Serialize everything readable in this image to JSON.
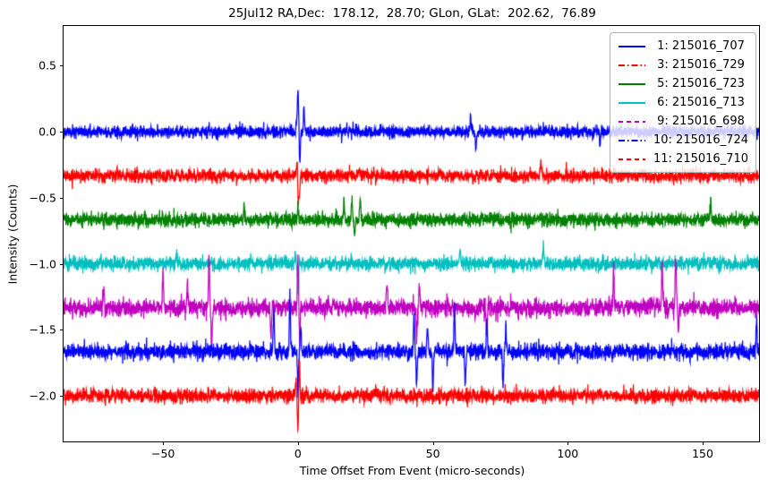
{
  "chart_data": {
    "type": "line",
    "title": "25Jul12 RA,Dec:  178.12,  28.70; GLon, GLat:  202.62,  76.89",
    "xlabel": "Time Offset From Event (micro-seconds)",
    "ylabel": "Intensity (Counts)",
    "xlim": [
      -86.9,
      170.9
    ],
    "ylim": [
      -2.346,
      0.801
    ],
    "xticks": [
      -50,
      0,
      50,
      100,
      150
    ],
    "xtick_labels": [
      "−50",
      "0",
      "50",
      "100",
      "150"
    ],
    "yticks": [
      0.5,
      0.0,
      -0.5,
      -1.0,
      -1.5,
      -2.0
    ],
    "ytick_labels": [
      "0.5",
      "0.0",
      "−0.5",
      "−1.0",
      "−1.5",
      "−2.0"
    ],
    "grid": false,
    "legend_position": "upper right",
    "background": "#ffffff",
    "axes_color": "#000000",
    "series": [
      {
        "name": " 1: 215016_707",
        "color": "#0000ff",
        "linestyle": "solid",
        "offset": 0.0,
        "noise_sigma": 0.022,
        "spikes": [
          {
            "t": -0.5,
            "amp": 0.1
          },
          {
            "t": 0.0,
            "amp": 0.32
          },
          {
            "t": 0.7,
            "amp": -0.22
          },
          {
            "t": 2.2,
            "amp": 0.19
          },
          {
            "t": 64.0,
            "amp": 0.13
          },
          {
            "t": 66.0,
            "amp": -0.15
          },
          {
            "t": 112.0,
            "amp": -0.1
          }
        ]
      },
      {
        "name": " 3: 215016_729",
        "color": "#ff0000",
        "linestyle": "dashdot",
        "offset": -0.333,
        "noise_sigma": 0.024,
        "spikes": [
          {
            "t": -0.3,
            "amp": 0.16
          },
          {
            "t": 0.0,
            "amp": -0.22
          },
          {
            "t": 0.5,
            "amp": -0.15
          },
          {
            "t": 90.0,
            "amp": 0.1
          }
        ]
      },
      {
        "name": " 5: 215016_723",
        "color": "#008000",
        "linestyle": "solid",
        "offset": -0.667,
        "noise_sigma": 0.026,
        "spikes": [
          {
            "t": -20.0,
            "amp": 0.1
          },
          {
            "t": 0.0,
            "amp": 0.1
          },
          {
            "t": 17.0,
            "amp": 0.15
          },
          {
            "t": 20.0,
            "amp": 0.16
          },
          {
            "t": 21.0,
            "amp": -0.13
          },
          {
            "t": 23.0,
            "amp": 0.17
          },
          {
            "t": 153.0,
            "amp": 0.16
          }
        ]
      },
      {
        "name": " 6: 215016_713",
        "color": "#00bfbf",
        "linestyle": "solid",
        "offset": -1.0,
        "noise_sigma": 0.026,
        "spikes": [
          {
            "t": -45.0,
            "amp": 0.1
          },
          {
            "t": -1.0,
            "amp": 0.1
          },
          {
            "t": 0.0,
            "amp": -0.22
          },
          {
            "t": 60.0,
            "amp": 0.1
          },
          {
            "t": 91.0,
            "amp": 0.14
          }
        ]
      },
      {
        "name": " 9: 215016_698",
        "color": "#bf00bf",
        "linestyle": "dashed",
        "offset": -1.333,
        "noise_sigma": 0.034,
        "spikes": [
          {
            "t": -72.0,
            "amp": 0.15
          },
          {
            "t": -50.0,
            "amp": 0.27
          },
          {
            "t": -41.0,
            "amp": 0.19
          },
          {
            "t": -33.0,
            "amp": 0.37
          },
          {
            "t": -32.0,
            "amp": -0.29
          },
          {
            "t": -10.0,
            "amp": -0.25
          },
          {
            "t": 0.0,
            "amp": 0.4
          },
          {
            "t": 0.6,
            "amp": -0.25
          },
          {
            "t": 33.0,
            "amp": 0.18
          },
          {
            "t": 44.0,
            "amp": -0.22
          },
          {
            "t": 45.0,
            "amp": 0.15
          },
          {
            "t": 70.0,
            "amp": -0.2
          },
          {
            "t": 117.0,
            "amp": 0.34
          },
          {
            "t": 135.0,
            "amp": 0.36
          },
          {
            "t": 140.0,
            "amp": 0.41
          },
          {
            "t": 141.0,
            "amp": -0.2
          }
        ]
      },
      {
        "name": "10: 215016_724",
        "color": "#0000ff",
        "linestyle": "dashdot",
        "offset": -1.667,
        "noise_sigma": 0.03,
        "spikes": [
          {
            "t": -9.0,
            "amp": 0.33
          },
          {
            "t": -3.0,
            "amp": 0.41
          },
          {
            "t": 0.0,
            "amp": -0.3
          },
          {
            "t": 1.0,
            "amp": 0.2
          },
          {
            "t": 43.0,
            "amp": 0.28
          },
          {
            "t": 44.0,
            "amp": -0.26
          },
          {
            "t": 48.0,
            "amp": 0.2
          },
          {
            "t": 50.0,
            "amp": -0.31
          },
          {
            "t": 58.0,
            "amp": 0.34
          },
          {
            "t": 62.0,
            "amp": -0.28
          },
          {
            "t": 70.0,
            "amp": 0.26
          },
          {
            "t": 76.0,
            "amp": -0.26
          },
          {
            "t": 77.0,
            "amp": 0.2
          },
          {
            "t": 170.0,
            "amp": 0.25
          }
        ]
      },
      {
        "name": "11: 215016_710",
        "color": "#ff0000",
        "linestyle": "dashed",
        "offset": -2.0,
        "noise_sigma": 0.026,
        "spikes": [
          {
            "t": -0.8,
            "amp": 0.12
          },
          {
            "t": 0.0,
            "amp": -0.27
          },
          {
            "t": 0.5,
            "amp": 0.25
          }
        ]
      }
    ]
  }
}
